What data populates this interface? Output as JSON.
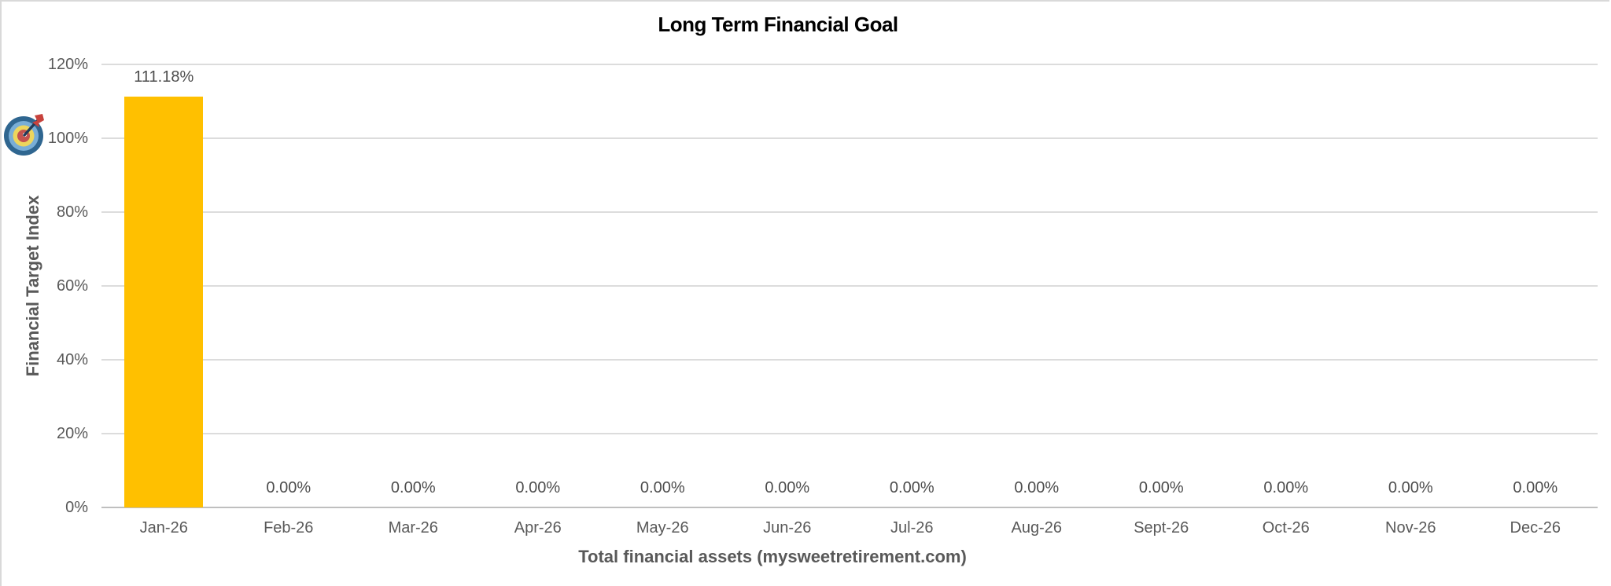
{
  "chart_data": {
    "type": "bar",
    "title": "Long Term Financial Goal",
    "xlabel": "Total financial assets (mysweetretirement.com)",
    "ylabel": "Financial Target Index",
    "categories": [
      "Jan-26",
      "Feb-26",
      "Mar-26",
      "Apr-26",
      "May-26",
      "Jun-26",
      "Jul-26",
      "Aug-26",
      "Sept-26",
      "Oct-26",
      "Nov-26",
      "Dec-26"
    ],
    "values": [
      111.18,
      0,
      0,
      0,
      0,
      0,
      0,
      0,
      0,
      0,
      0,
      0
    ],
    "data_labels": [
      "111.18%",
      "0.00%",
      "0.00%",
      "0.00%",
      "0.00%",
      "0.00%",
      "0.00%",
      "0.00%",
      "0.00%",
      "0.00%",
      "0.00%",
      "0.00%"
    ],
    "y_tick_values": [
      0,
      20,
      40,
      60,
      80,
      100,
      120
    ],
    "y_tick_labels": [
      "0%",
      "20%",
      "40%",
      "60%",
      "80%",
      "100%",
      "120%"
    ],
    "ylim": [
      0,
      120
    ],
    "grid": true,
    "legend_position": "none",
    "bar_color": "#FFC000",
    "gridline_color": "#DCDCDC",
    "axis_line_color": "#BFBFBF",
    "label_color": "#595959",
    "title_color": "#000000",
    "target_marker": {
      "icon": "bullseye-dart-icon",
      "at_value": 100,
      "colors": {
        "outer_ring": "#2F6690",
        "inner_ring": "#79AED6",
        "yellow_ring": "#EDD65C",
        "center": "#C4534F",
        "impact_dot": "#FFFFFF",
        "arrow_shaft": "#203A57",
        "arrow_fletch": "#C7423C"
      }
    }
  }
}
